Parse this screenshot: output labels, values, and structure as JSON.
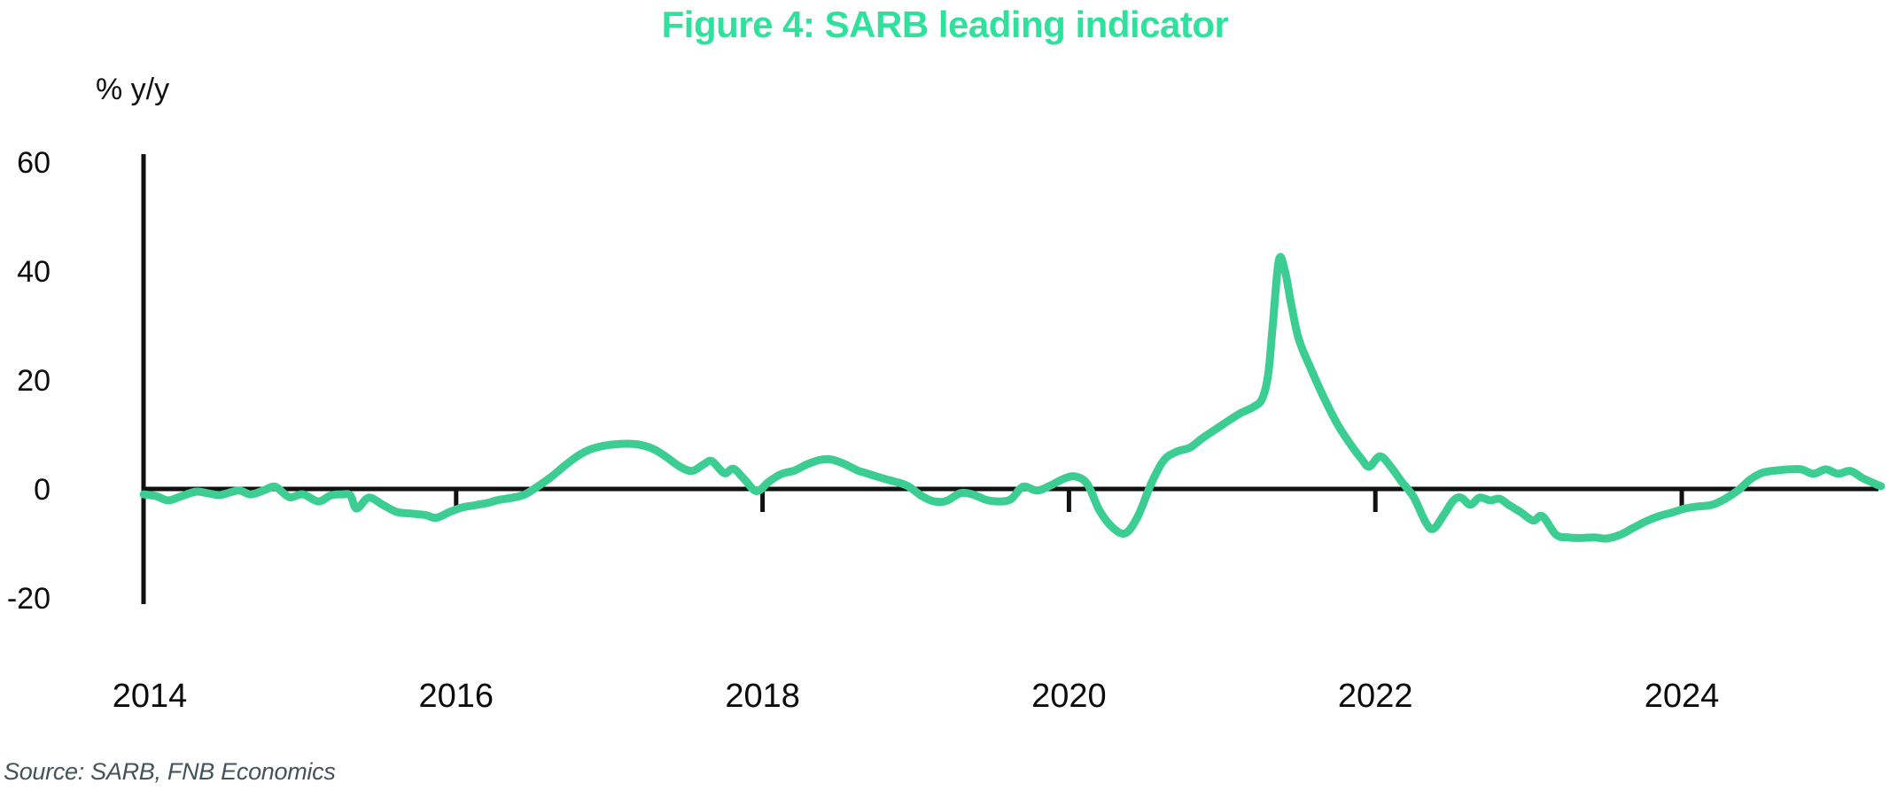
{
  "title": "Figure 4: SARB leading indicator",
  "source": "Source: SARB, FNB Economics",
  "colors": {
    "title": "#2FE19C",
    "line": "#3CCD92",
    "axis": "#111111",
    "source_text": "#44535A"
  },
  "chart_data": {
    "type": "line",
    "title": "Figure 4: SARB leading indicator",
    "ylabel": "% y/y",
    "xlabel": "",
    "ylim": [
      -20,
      60
    ],
    "xlim": [
      2013.96,
      2025.35
    ],
    "yticks": [
      60,
      40,
      20,
      0,
      -20
    ],
    "xticks_labeled": [
      2014,
      2016,
      2018,
      2020,
      2022,
      2024
    ],
    "xticks_marked": [
      2016,
      2018,
      2020,
      2022,
      2024
    ],
    "grid": false,
    "legend": false,
    "zero_baseline": true,
    "series": [
      {
        "name": "SARB leading indicator, % y/y",
        "points": [
          [
            2013.96,
            -1.0
          ],
          [
            2014.04,
            -1.3
          ],
          [
            2014.12,
            -2.1
          ],
          [
            2014.2,
            -1.4
          ],
          [
            2014.3,
            -0.5
          ],
          [
            2014.38,
            -0.8
          ],
          [
            2014.46,
            -1.1
          ],
          [
            2014.58,
            -0.3
          ],
          [
            2014.66,
            -1.0
          ],
          [
            2014.75,
            -0.2
          ],
          [
            2014.82,
            0.4
          ],
          [
            2014.91,
            -1.5
          ],
          [
            2015.0,
            -1.0
          ],
          [
            2015.1,
            -2.3
          ],
          [
            2015.18,
            -1.2
          ],
          [
            2015.26,
            -1.0
          ],
          [
            2015.31,
            -1.2
          ],
          [
            2015.35,
            -3.6
          ],
          [
            2015.43,
            -1.6
          ],
          [
            2015.52,
            -2.9
          ],
          [
            2015.61,
            -4.2
          ],
          [
            2015.7,
            -4.5
          ],
          [
            2015.8,
            -4.8
          ],
          [
            2015.87,
            -5.3
          ],
          [
            2015.96,
            -4.2
          ],
          [
            2016.04,
            -3.4
          ],
          [
            2016.12,
            -3.0
          ],
          [
            2016.2,
            -2.6
          ],
          [
            2016.28,
            -2.0
          ],
          [
            2016.37,
            -1.6
          ],
          [
            2016.45,
            -1.0
          ],
          [
            2016.53,
            0.4
          ],
          [
            2016.62,
            2.2
          ],
          [
            2016.71,
            4.3
          ],
          [
            2016.79,
            6.0
          ],
          [
            2016.87,
            7.2
          ],
          [
            2016.96,
            7.9
          ],
          [
            2017.04,
            8.2
          ],
          [
            2017.12,
            8.3
          ],
          [
            2017.2,
            8.1
          ],
          [
            2017.29,
            7.3
          ],
          [
            2017.37,
            5.9
          ],
          [
            2017.46,
            4.1
          ],
          [
            2017.54,
            3.3
          ],
          [
            2017.62,
            4.6
          ],
          [
            2017.67,
            5.1
          ],
          [
            2017.75,
            2.9
          ],
          [
            2017.81,
            3.7
          ],
          [
            2017.88,
            1.8
          ],
          [
            2017.96,
            -0.4
          ],
          [
            2018.04,
            1.3
          ],
          [
            2018.12,
            2.7
          ],
          [
            2018.21,
            3.4
          ],
          [
            2018.29,
            4.5
          ],
          [
            2018.37,
            5.3
          ],
          [
            2018.45,
            5.4
          ],
          [
            2018.54,
            4.5
          ],
          [
            2018.62,
            3.4
          ],
          [
            2018.7,
            2.7
          ],
          [
            2018.79,
            1.9
          ],
          [
            2018.87,
            1.3
          ],
          [
            2018.95,
            0.5
          ],
          [
            2019.04,
            -1.3
          ],
          [
            2019.12,
            -2.3
          ],
          [
            2019.2,
            -2.2
          ],
          [
            2019.29,
            -0.8
          ],
          [
            2019.37,
            -1.0
          ],
          [
            2019.46,
            -2.0
          ],
          [
            2019.54,
            -2.3
          ],
          [
            2019.62,
            -1.9
          ],
          [
            2019.7,
            0.4
          ],
          [
            2019.79,
            -0.3
          ],
          [
            2019.87,
            0.5
          ],
          [
            2019.96,
            1.8
          ],
          [
            2020.04,
            2.3
          ],
          [
            2020.12,
            0.9
          ],
          [
            2020.2,
            -4.0
          ],
          [
            2020.29,
            -7.2
          ],
          [
            2020.37,
            -8.1
          ],
          [
            2020.45,
            -5.0
          ],
          [
            2020.54,
            1.2
          ],
          [
            2020.62,
            5.3
          ],
          [
            2020.7,
            6.8
          ],
          [
            2020.79,
            7.6
          ],
          [
            2020.87,
            9.3
          ],
          [
            2020.96,
            11.0
          ],
          [
            2021.04,
            12.5
          ],
          [
            2021.12,
            13.9
          ],
          [
            2021.2,
            15.0
          ],
          [
            2021.26,
            16.5
          ],
          [
            2021.3,
            21.0
          ],
          [
            2021.33,
            30.0
          ],
          [
            2021.37,
            42.0
          ],
          [
            2021.41,
            40.0
          ],
          [
            2021.45,
            34.0
          ],
          [
            2021.5,
            27.5
          ],
          [
            2021.58,
            22.0
          ],
          [
            2021.66,
            17.0
          ],
          [
            2021.75,
            12.0
          ],
          [
            2021.83,
            8.5
          ],
          [
            2021.91,
            5.5
          ],
          [
            2021.96,
            4.1
          ],
          [
            2022.03,
            6.0
          ],
          [
            2022.1,
            4.1
          ],
          [
            2022.17,
            1.4
          ],
          [
            2022.25,
            -1.5
          ],
          [
            2022.33,
            -6.2
          ],
          [
            2022.38,
            -7.3
          ],
          [
            2022.45,
            -4.6
          ],
          [
            2022.51,
            -2.1
          ],
          [
            2022.56,
            -1.6
          ],
          [
            2022.62,
            -2.9
          ],
          [
            2022.68,
            -1.6
          ],
          [
            2022.75,
            -2.1
          ],
          [
            2022.81,
            -1.8
          ],
          [
            2022.87,
            -2.9
          ],
          [
            2022.95,
            -4.3
          ],
          [
            2023.03,
            -5.8
          ],
          [
            2023.09,
            -5.0
          ],
          [
            2023.18,
            -8.4
          ],
          [
            2023.26,
            -8.9
          ],
          [
            2023.34,
            -9.0
          ],
          [
            2023.43,
            -8.9
          ],
          [
            2023.51,
            -9.1
          ],
          [
            2023.6,
            -8.4
          ],
          [
            2023.68,
            -7.2
          ],
          [
            2023.77,
            -5.9
          ],
          [
            2023.85,
            -5.0
          ],
          [
            2023.94,
            -4.3
          ],
          [
            2024.02,
            -3.6
          ],
          [
            2024.11,
            -3.2
          ],
          [
            2024.2,
            -2.9
          ],
          [
            2024.29,
            -1.7
          ],
          [
            2024.37,
            -0.2
          ],
          [
            2024.45,
            1.8
          ],
          [
            2024.53,
            3.0
          ],
          [
            2024.62,
            3.4
          ],
          [
            2024.7,
            3.6
          ],
          [
            2024.78,
            3.6
          ],
          [
            2024.86,
            2.8
          ],
          [
            2024.94,
            3.6
          ],
          [
            2025.02,
            2.8
          ],
          [
            2025.1,
            3.3
          ],
          [
            2025.18,
            2.0
          ],
          [
            2025.25,
            1.1
          ],
          [
            2025.3,
            0.5
          ]
        ]
      }
    ]
  }
}
